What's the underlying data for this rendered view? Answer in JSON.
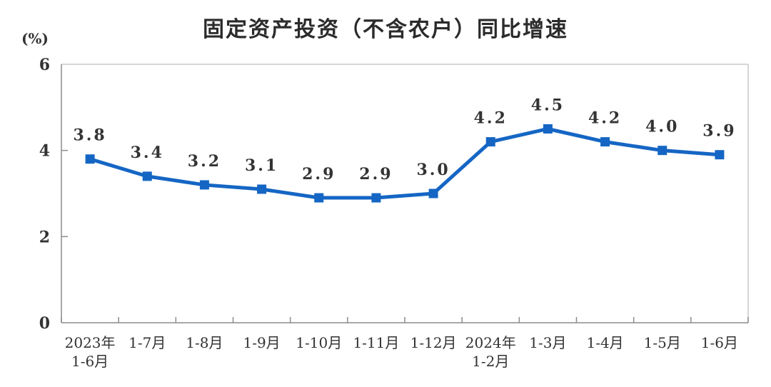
{
  "chart_data": {
    "type": "line",
    "title": "固定资产投资（不含农户）同比增速",
    "unit_label": "(%)",
    "categories": [
      [
        "2023年",
        "1-6月"
      ],
      [
        "1-7月"
      ],
      [
        "1-8月"
      ],
      [
        "1-9月"
      ],
      [
        "1-10月"
      ],
      [
        "1-11月"
      ],
      [
        "1-12月"
      ],
      [
        "2024年",
        "1-2月"
      ],
      [
        "1-3月"
      ],
      [
        "1-4月"
      ],
      [
        "1-5月"
      ],
      [
        "1-6月"
      ]
    ],
    "values": [
      3.8,
      3.4,
      3.2,
      3.1,
      2.9,
      2.9,
      3.0,
      4.2,
      4.5,
      4.2,
      4.0,
      3.9
    ],
    "point_labels": [
      "3.8",
      "3.4",
      "3.2",
      "3.1",
      "2.9",
      "2.9",
      "3.0",
      "4.2",
      "4.5",
      "4.2",
      "4.0",
      "3.9"
    ],
    "xlabel": "",
    "ylabel": "(%)",
    "ylim": [
      0,
      6
    ],
    "yticks": [
      0,
      2,
      4,
      6
    ],
    "grid": false,
    "legend_position": "none",
    "colors": {
      "line": "#1566C4",
      "marker": "#1566C4",
      "axis": "#8C8C8C",
      "border": "#C9C9C9",
      "text": "#333333"
    }
  }
}
